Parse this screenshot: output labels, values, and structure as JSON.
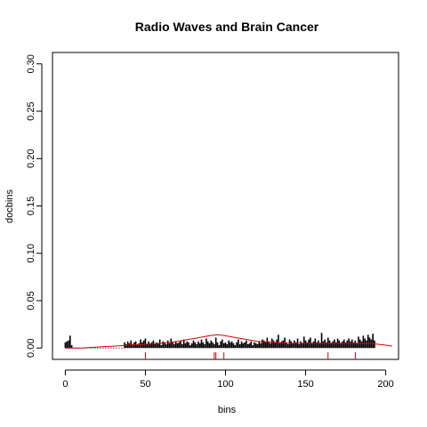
{
  "chart_data": {
    "type": "bar",
    "title": "Radio Waves and Brain Cancer",
    "xlabel": "bins",
    "ylabel": "docbins",
    "xlim": [
      -8,
      208
    ],
    "ylim": [
      -0.012,
      0.312
    ],
    "x_ticks": [
      0,
      50,
      100,
      150,
      200
    ],
    "y_ticks": [
      0.0,
      0.05,
      0.1,
      0.15,
      0.2,
      0.25,
      0.3
    ],
    "x_tick_labels": [
      "0",
      "50",
      "100",
      "150",
      "200"
    ],
    "y_tick_labels": [
      "0.00",
      "0.05",
      "0.10",
      "0.15",
      "0.20",
      "0.25",
      "0.30"
    ],
    "bars": {
      "color": "#000000",
      "segments": [
        {
          "start": 0,
          "values": [
            0.006,
            0.007,
            0.008,
            0.013,
            0.003
          ]
        },
        {
          "start": 37,
          "values": [
            0.006,
            0.004,
            0.007,
            0.005,
            0.008,
            0.004,
            0.006,
            0.007,
            0.003,
            0.005,
            0.009,
            0.006,
            0.008,
            0.01,
            0.004,
            0.007,
            0.005,
            0.006,
            0.008,
            0.004,
            0.006,
            0.005,
            0.009,
            0.003,
            0.007,
            0.006,
            0.004,
            0.008,
            0.005,
            0.01,
            0.006,
            0.004,
            0.007,
            0.005,
            0.006,
            0.008,
            0.004,
            0.009,
            0.005,
            0.007,
            0.006,
            0.003,
            0.005,
            0.008,
            0.006,
            0.004,
            0.007,
            0.005,
            0.009,
            0.006,
            0.004,
            0.01,
            0.007,
            0.005,
            0.008,
            0.006,
            0.004,
            0.011,
            0.006,
            0.003,
            0.007,
            0.009,
            0.005,
            0.006,
            0.004,
            0.008,
            0.006,
            0.007,
            0.005,
            0.003,
            0.006,
            0.009,
            0.004,
            0.007,
            0.005,
            0.006,
            0.008,
            0.004,
            0.005,
            0.007,
            0.003,
            0.006,
            0.005,
            0.004,
            0.007,
            0.005,
            0.009,
            0.008,
            0.006,
            0.011,
            0.007,
            0.005,
            0.01,
            0.008,
            0.006,
            0.009,
            0.014,
            0.005,
            0.007,
            0.008,
            0.011,
            0.006,
            0.004,
            0.009,
            0.007,
            0.005,
            0.008,
            0.006,
            0.01,
            0.004,
            0.007,
            0.005,
            0.012,
            0.008,
            0.006,
            0.009,
            0.011,
            0.005,
            0.007,
            0.01,
            0.006,
            0.008,
            0.005,
            0.016,
            0.007,
            0.009,
            0.006,
            0.011,
            0.008,
            0.005,
            0.007,
            0.009,
            0.006,
            0.01,
            0.008,
            0.005,
            0.007,
            0.009,
            0.006,
            0.008,
            0.01,
            0.007,
            0.009,
            0.006,
            0.008,
            0.005,
            0.012,
            0.009,
            0.007,
            0.013,
            0.01,
            0.008,
            0.014,
            0.011,
            0.009,
            0.015,
            0.008
          ]
        }
      ]
    },
    "curve": {
      "color": "#dd0000",
      "x": [
        0,
        10,
        20,
        30,
        40,
        50,
        60,
        70,
        80,
        90,
        95,
        100,
        110,
        120,
        130,
        140,
        150,
        160,
        170,
        180,
        190,
        200,
        204
      ],
      "y": [
        0.0,
        0.0,
        0.001,
        0.002,
        0.003,
        0.004,
        0.005,
        0.007,
        0.01,
        0.013,
        0.014,
        0.013,
        0.01,
        0.007,
        0.006,
        0.005,
        0.005,
        0.005,
        0.005,
        0.005,
        0.005,
        0.003,
        0.002
      ]
    },
    "rug": {
      "color": "#dd0000",
      "x": [
        50,
        93,
        94,
        99,
        164,
        181
      ]
    },
    "grid": false,
    "legend": "none"
  }
}
